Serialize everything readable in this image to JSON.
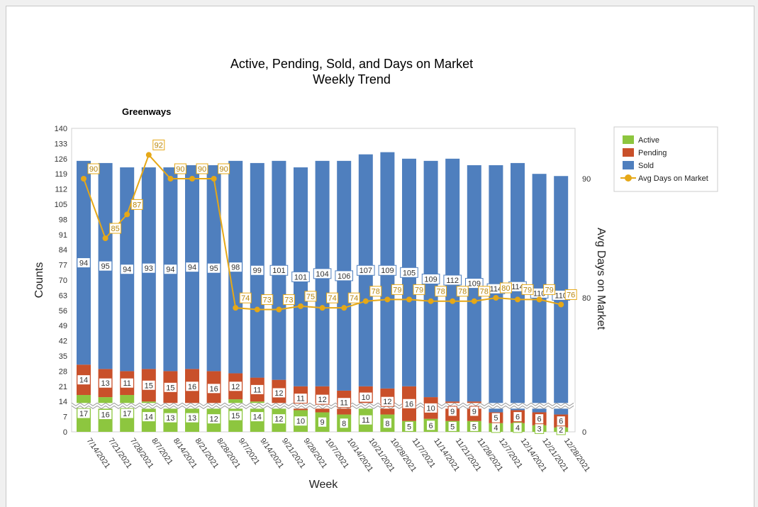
{
  "chart_data": {
    "type": "bar",
    "stacked": true,
    "title": "Active, Pending, Sold, and Days on Market",
    "subtitle": "Weekly Trend",
    "panel_title": "Greenways",
    "xlabel": "Week",
    "ylabel": "Counts",
    "y2label": "Avg Days on Market",
    "ylim": [
      0,
      140
    ],
    "y_ticks": [
      0,
      7,
      14,
      21,
      28,
      35,
      42,
      49,
      56,
      63,
      70,
      77,
      84,
      91,
      98,
      105,
      112,
      119,
      126,
      133,
      140
    ],
    "y2_ticks": [
      0,
      80,
      90
    ],
    "axis_break_at": 12,
    "categories": [
      "7/14/2021",
      "7/21/2021",
      "7/28/2021",
      "8/7/2021",
      "8/14/2021",
      "8/21/2021",
      "8/28/2021",
      "9/7/2021",
      "9/14/2021",
      "9/21/2021",
      "9/28/2021",
      "10/7/2021",
      "10/14/2021",
      "10/21/2021",
      "10/28/2021",
      "11/7/2021",
      "11/14/2021",
      "11/21/2021",
      "11/28/2021",
      "12/7/2021",
      "12/14/2021",
      "12/21/2021",
      "12/28/2021"
    ],
    "series": [
      {
        "name": "Active",
        "color": "#8dc63f",
        "values": [
          17,
          16,
          17,
          14,
          13,
          13,
          12,
          15,
          14,
          12,
          10,
          9,
          8,
          11,
          8,
          5,
          6,
          5,
          5,
          4,
          4,
          3,
          2
        ]
      },
      {
        "name": "Pending",
        "color": "#c9502a",
        "values": [
          14,
          13,
          11,
          15,
          15,
          16,
          16,
          12,
          11,
          12,
          11,
          12,
          11,
          10,
          12,
          16,
          10,
          9,
          9,
          5,
          6,
          6,
          6
        ]
      },
      {
        "name": "Sold",
        "color": "#4f7fbe",
        "values": [
          94,
          95,
          94,
          93,
          94,
          94,
          95,
          98,
          99,
          101,
          101,
          104,
          106,
          107,
          109,
          105,
          109,
          112,
          109,
          114,
          114,
          110,
          110
        ]
      },
      {
        "name": "Avg Days on Market",
        "type": "line",
        "axis": "secondary",
        "color": "#e6a817",
        "values": [
          90,
          85,
          87,
          92,
          90,
          90,
          90,
          74,
          73,
          73,
          75,
          74,
          74,
          78,
          79,
          79,
          78,
          78,
          78,
          80,
          79,
          79,
          76
        ]
      }
    ],
    "legend": [
      "Active",
      "Pending",
      "Sold",
      "Avg Days on Market"
    ],
    "legend_position": "top-right"
  }
}
